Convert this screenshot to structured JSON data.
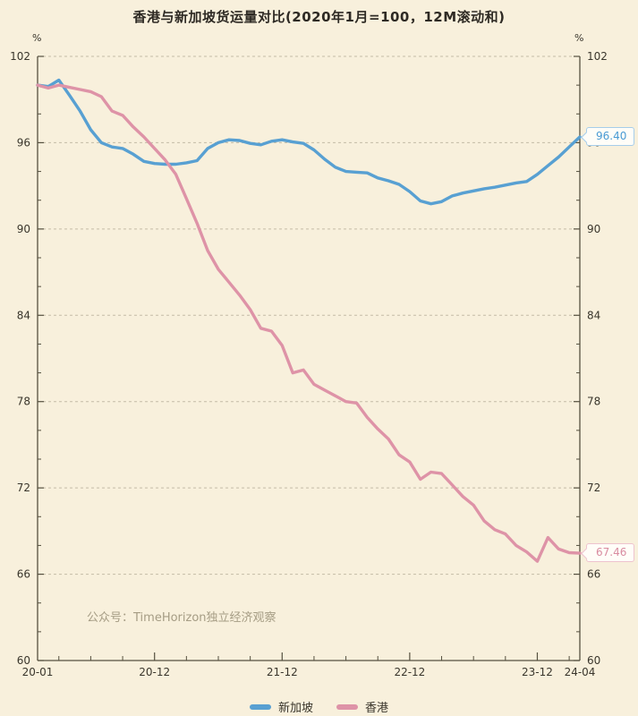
{
  "title": "香港与新加坡货运量对比(2020年1月=100，12M滚动和)",
  "watermark": "公众号：TimeHorizon独立经济观察",
  "colors": {
    "background": "#f8f0dc",
    "singapore": "#58a0d2",
    "hongkong": "#de93a7",
    "grid": "#c4bba6",
    "axis": "#55503f",
    "tick_text": "#3a362c",
    "title_text": "#2e2a24",
    "watermark_text": "#a59c84",
    "callout_singapore_text": "#4a9bd4",
    "callout_singapore_border": "#a6cdea",
    "callout_hongkong_text": "#d98ca0",
    "callout_hongkong_border": "#eec3ce"
  },
  "axes": {
    "y_unit_label_left": "%",
    "y_unit_label_right": "%",
    "y_tick_labels": [
      102,
      96,
      90,
      84,
      78,
      72,
      66,
      60
    ],
    "y_minor_ticks": [
      100,
      98,
      94,
      92,
      88,
      86,
      82,
      80,
      76,
      74,
      70,
      68,
      64,
      62
    ],
    "x_tick_labels": [
      {
        "label": "20-01",
        "month": 0
      },
      {
        "label": "20-12",
        "month": 11
      },
      {
        "label": "21-12",
        "month": 23
      },
      {
        "label": "22-12",
        "month": 35
      },
      {
        "label": "23-12",
        "month": 47
      },
      {
        "label": "24-04",
        "month": 51
      }
    ],
    "x_major_tick_months": [
      11,
      23,
      35,
      47
    ],
    "x_minor_tick_months": [
      2,
      5,
      8,
      14,
      17,
      20,
      26,
      29,
      32,
      38,
      41,
      44,
      50
    ]
  },
  "legend": [
    {
      "key": "singapore",
      "label": "新加坡"
    },
    {
      "key": "hongkong",
      "label": "香港"
    }
  ],
  "callouts": [
    {
      "key": "singapore",
      "series": "新加坡",
      "value_label": "96.40",
      "value": 96.4
    },
    {
      "key": "hongkong",
      "series": "香港",
      "value_label": "67.46",
      "value": 67.46
    }
  ],
  "chart_data": {
    "type": "line",
    "title": "香港与新加坡货运量对比(2020年1月=100，12M滚动和)",
    "x_unit": "month",
    "x_start": "2020-01",
    "x_end": "2024-04",
    "xlabel": "",
    "ylabel": "%",
    "ylim": [
      60,
      102
    ],
    "grid": "dashed-horizontal",
    "legend_position": "bottom-center",
    "series": [
      {
        "name": "新加坡",
        "key": "singapore",
        "color": "#58a0d2",
        "end_value": 96.4,
        "values": [
          100.0,
          99.9,
          100.35,
          99.3,
          98.2,
          96.9,
          96.0,
          95.7,
          95.6,
          95.2,
          94.7,
          94.55,
          94.5,
          94.5,
          94.6,
          94.75,
          95.6,
          96.0,
          96.2,
          96.15,
          95.95,
          95.85,
          96.1,
          96.2,
          96.05,
          95.95,
          95.5,
          94.85,
          94.3,
          94.0,
          93.95,
          93.9,
          93.55,
          93.35,
          93.1,
          92.6,
          91.95,
          91.75,
          91.9,
          92.3,
          92.5,
          92.65,
          92.8,
          92.9,
          93.05,
          93.2,
          93.3,
          93.8,
          94.4,
          95.0,
          95.7,
          96.4
        ]
      },
      {
        "name": "香港",
        "key": "hongkong",
        "color": "#de93a7",
        "end_value": 67.46,
        "values": [
          100.0,
          99.8,
          100.0,
          99.85,
          99.7,
          99.55,
          99.2,
          98.2,
          97.9,
          97.1,
          96.4,
          95.6,
          94.8,
          93.8,
          92.1,
          90.4,
          88.5,
          87.2,
          86.3,
          85.4,
          84.4,
          83.1,
          82.9,
          81.9,
          80.0,
          80.2,
          79.2,
          78.8,
          78.4,
          78.0,
          77.9,
          76.9,
          76.1,
          75.4,
          74.3,
          73.8,
          72.6,
          73.1,
          73.0,
          72.2,
          71.4,
          70.8,
          69.7,
          69.1,
          68.8,
          68.0,
          67.55,
          66.9,
          68.55,
          67.75,
          67.5,
          67.46
        ]
      }
    ]
  }
}
